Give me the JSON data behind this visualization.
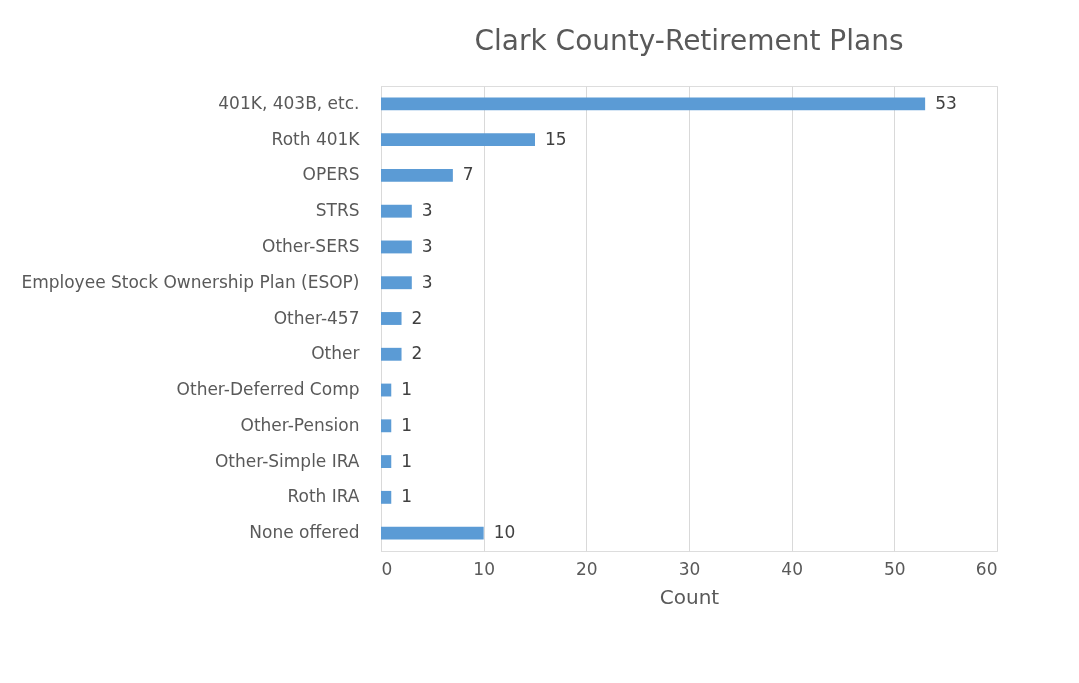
{
  "chart_data": {
    "type": "bar",
    "orientation": "horizontal",
    "title": "Clark County-Retirement Plans",
    "xlabel": "Count",
    "categories": [
      "401K, 403B, etc.",
      "Roth 401K",
      "OPERS",
      "STRS",
      "Other-SERS",
      "Employee Stock Ownership Plan (ESOP)",
      "Other-457",
      "Other",
      "Other-Deferred Comp",
      "Other-Pension",
      "Other-Simple IRA",
      "Roth IRA",
      "None offered"
    ],
    "values": [
      53,
      15,
      7,
      3,
      3,
      3,
      2,
      2,
      1,
      1,
      1,
      1,
      10
    ],
    "color": "#5b9bd5",
    "xlim": [
      0,
      60
    ],
    "xticks": [
      0,
      10,
      20,
      30,
      40,
      50,
      60
    ],
    "grid": "x",
    "data_labels": true
  }
}
